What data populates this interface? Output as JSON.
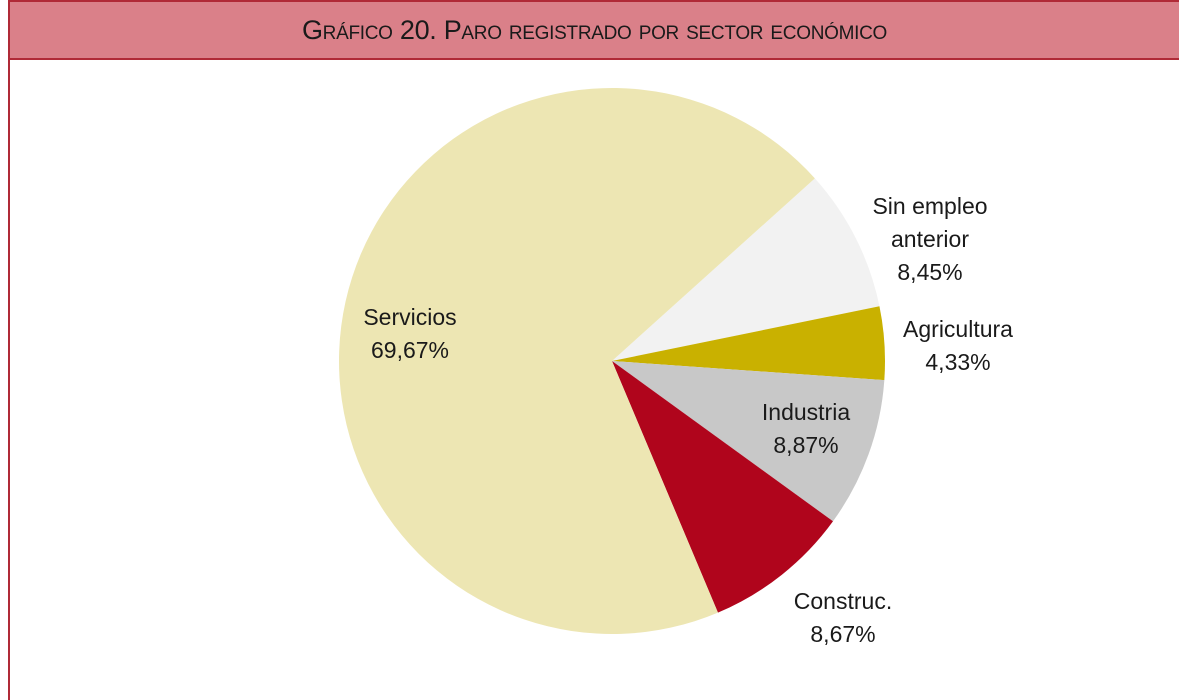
{
  "chart_data": {
    "type": "pie",
    "title": "Gráfico 20. Paro registrado por sector económico",
    "categories": [
      "Sin empleo anterior",
      "Agricultura",
      "Industria",
      "Construc.",
      "Servicios"
    ],
    "values": [
      8.45,
      4.33,
      8.87,
      8.67,
      69.67
    ],
    "value_labels": [
      "8,45%",
      "4,33%",
      "8,87%",
      "8,67%",
      "69,67%"
    ],
    "colors": [
      "#f2f2f2",
      "#c9b100",
      "#c8c8c8",
      "#b0051c",
      "#ede6b3"
    ]
  }
}
